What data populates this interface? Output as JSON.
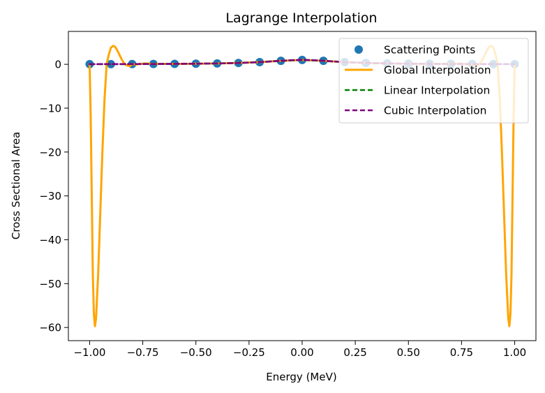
{
  "chart_data": {
    "type": "line",
    "title": "Lagrange Interpolation",
    "xlabel": "Energy (MeV)",
    "ylabel": "Cross Sectional Area",
    "xlim": [
      -1.1,
      1.1
    ],
    "ylim": [
      -63,
      7.5
    ],
    "xticks": [
      -1.0,
      -0.75,
      -0.5,
      -0.25,
      0.0,
      0.25,
      0.5,
      0.75,
      1.0
    ],
    "xtick_labels": [
      "−1.00",
      "−0.75",
      "−0.50",
      "−0.25",
      "0.00",
      "0.25",
      "0.50",
      "0.75",
      "1.00"
    ],
    "yticks": [
      0,
      -10,
      -20,
      -30,
      -40,
      -50,
      -60
    ],
    "ytick_labels": [
      "0",
      "−10",
      "−20",
      "−30",
      "−40",
      "−50",
      "−60"
    ],
    "grid": false,
    "legend_position": "top-right",
    "series": [
      {
        "name": "Scattering Points",
        "kind": "scatter",
        "color": "#1f77b4",
        "x": [
          -1.0,
          -0.9,
          -0.8,
          -0.7,
          -0.6,
          -0.5,
          -0.4,
          -0.3,
          -0.2,
          -0.1,
          0.0,
          0.1,
          0.2,
          0.3,
          0.4,
          0.5,
          0.6,
          0.7,
          0.8,
          0.9,
          1.0
        ],
        "y": [
          0.038,
          0.047,
          0.059,
          0.075,
          0.1,
          0.138,
          0.2,
          0.308,
          0.5,
          0.8,
          1.0,
          0.8,
          0.5,
          0.308,
          0.2,
          0.138,
          0.1,
          0.075,
          0.059,
          0.047,
          0.038
        ]
      },
      {
        "name": "Global Interpolation",
        "kind": "line",
        "color": "#ffa500",
        "dash": "solid",
        "x": [
          -1.0,
          -0.995,
          -0.99,
          -0.985,
          -0.98,
          -0.975,
          -0.97,
          -0.96,
          -0.95,
          -0.94,
          -0.93,
          -0.92,
          -0.91,
          -0.9,
          -0.89,
          -0.88,
          -0.87,
          -0.86,
          -0.85,
          -0.84,
          -0.83,
          -0.82,
          -0.81,
          -0.8,
          -0.78,
          -0.76,
          -0.74,
          -0.72,
          -0.7,
          -0.65,
          -0.6,
          -0.5,
          -0.4,
          -0.3,
          -0.2,
          -0.1,
          0.0,
          0.1,
          0.2,
          0.3,
          0.4,
          0.5,
          0.6,
          0.65,
          0.7,
          0.72,
          0.74,
          0.76,
          0.78,
          0.8,
          0.81,
          0.82,
          0.83,
          0.84,
          0.85,
          0.86,
          0.87,
          0.88,
          0.89,
          0.9,
          0.91,
          0.92,
          0.93,
          0.94,
          0.95,
          0.96,
          0.97,
          0.975,
          0.98,
          0.985,
          0.99,
          0.995,
          1.0
        ],
        "y": [
          0.04,
          -12,
          -30,
          -48,
          -57,
          -59.7,
          -58,
          -48,
          -34,
          -20,
          -8,
          0.05,
          2.2,
          3.8,
          4.2,
          4.0,
          3.2,
          2.2,
          1.2,
          0.4,
          -0.1,
          -0.35,
          -0.4,
          0.06,
          -0.05,
          0.1,
          0.2,
          0.15,
          0.08,
          0.1,
          0.1,
          0.14,
          0.2,
          0.31,
          0.5,
          0.8,
          1.0,
          0.8,
          0.5,
          0.31,
          0.2,
          0.14,
          0.1,
          0.1,
          0.08,
          0.15,
          0.2,
          0.1,
          -0.05,
          0.06,
          -0.4,
          -0.35,
          -0.1,
          0.4,
          1.2,
          2.2,
          3.2,
          4.0,
          4.2,
          3.8,
          2.2,
          0.05,
          -8,
          -20,
          -34,
          -48,
          -58,
          -59.7,
          -57,
          -48,
          -30,
          -12,
          0.04
        ]
      },
      {
        "name": "Linear Interpolation",
        "kind": "line",
        "color": "#008000",
        "dash": "dashed",
        "x": [
          -1.0,
          -0.9,
          -0.8,
          -0.7,
          -0.6,
          -0.5,
          -0.4,
          -0.3,
          -0.2,
          -0.1,
          0.0,
          0.1,
          0.2,
          0.3,
          0.4,
          0.5,
          0.6,
          0.7,
          0.8,
          0.9,
          1.0
        ],
        "y": [
          0.038,
          0.047,
          0.059,
          0.075,
          0.1,
          0.138,
          0.2,
          0.308,
          0.5,
          0.8,
          1.0,
          0.8,
          0.5,
          0.308,
          0.2,
          0.138,
          0.1,
          0.075,
          0.059,
          0.047,
          0.038
        ]
      },
      {
        "name": "Cubic Interpolation",
        "kind": "line",
        "color": "#800080",
        "dash": "dashed",
        "x": [
          -1.0,
          -0.9,
          -0.8,
          -0.7,
          -0.6,
          -0.5,
          -0.4,
          -0.3,
          -0.2,
          -0.15,
          -0.1,
          -0.05,
          0.0,
          0.05,
          0.1,
          0.15,
          0.2,
          0.3,
          0.4,
          0.5,
          0.6,
          0.7,
          0.8,
          0.9,
          1.0
        ],
        "y": [
          0.038,
          0.047,
          0.059,
          0.075,
          0.1,
          0.138,
          0.2,
          0.308,
          0.5,
          0.65,
          0.8,
          0.94,
          1.0,
          0.94,
          0.8,
          0.65,
          0.5,
          0.308,
          0.2,
          0.138,
          0.1,
          0.075,
          0.059,
          0.047,
          0.038
        ]
      }
    ]
  }
}
